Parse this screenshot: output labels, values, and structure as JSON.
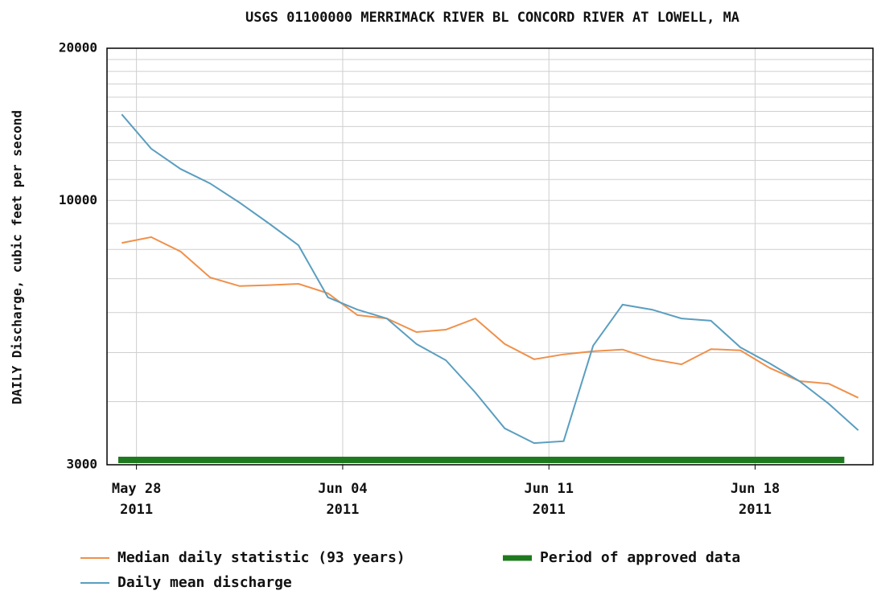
{
  "chart_data": {
    "type": "line",
    "title": "USGS 01100000 MERRIMACK RIVER BL CONCORD RIVER AT LOWELL, MA",
    "y_label": "DAILY Discharge, cubic feet per second",
    "log_y": true,
    "grid": true,
    "ylim": [
      3000,
      20000
    ],
    "yticks": [
      3000,
      10000,
      20000
    ],
    "yminor": [
      4000,
      5000,
      6000,
      7000,
      8000,
      9000,
      11000,
      12000,
      13000,
      14000,
      15000,
      16000,
      17000,
      18000,
      19000
    ],
    "xlim": [
      "2011-05-27",
      "2011-06-22"
    ],
    "xticks": [
      {
        "value": "2011-05-28",
        "label": [
          "May 28",
          "2011"
        ]
      },
      {
        "value": "2011-06-04",
        "label": [
          "Jun 04",
          "2011"
        ]
      },
      {
        "value": "2011-06-11",
        "label": [
          "Jun 11",
          "2011"
        ]
      },
      {
        "value": "2011-06-18",
        "label": [
          "Jun 18",
          "2011"
        ]
      }
    ],
    "x": [
      "2011-05-27",
      "2011-05-28",
      "2011-05-29",
      "2011-05-30",
      "2011-05-31",
      "2011-06-01",
      "2011-06-02",
      "2011-06-03",
      "2011-06-04",
      "2011-06-05",
      "2011-06-06",
      "2011-06-07",
      "2011-06-08",
      "2011-06-09",
      "2011-06-10",
      "2011-06-11",
      "2011-06-12",
      "2011-06-13",
      "2011-06-14",
      "2011-06-15",
      "2011-06-16",
      "2011-06-17",
      "2011-06-18",
      "2011-06-19",
      "2011-06-20",
      "2011-06-21"
    ],
    "series": [
      {
        "name": "Median daily statistic (93 years)",
        "color": "#f0904a",
        "values": [
          8240,
          8460,
          7920,
          7040,
          6770,
          6800,
          6840,
          6550,
          5930,
          5840,
          5490,
          5550,
          5840,
          5200,
          4850,
          4960,
          5030,
          5070,
          4850,
          4740,
          5080,
          5050,
          4660,
          4390,
          4340,
          4070
        ]
      },
      {
        "name": "Daily mean discharge",
        "color": "#5a9ec0",
        "values": [
          14800,
          12660,
          11540,
          10800,
          9900,
          9000,
          8150,
          6430,
          6080,
          5840,
          5200,
          4830,
          4170,
          3540,
          3310,
          3340,
          5160,
          6220,
          6080,
          5840,
          5780,
          5120,
          4760,
          4390,
          3960,
          3510
        ]
      }
    ],
    "approved_period": {
      "name": "Period of approved data",
      "color": "#1f7a1f",
      "start": "2011-05-27",
      "end": "2011-06-21"
    }
  }
}
